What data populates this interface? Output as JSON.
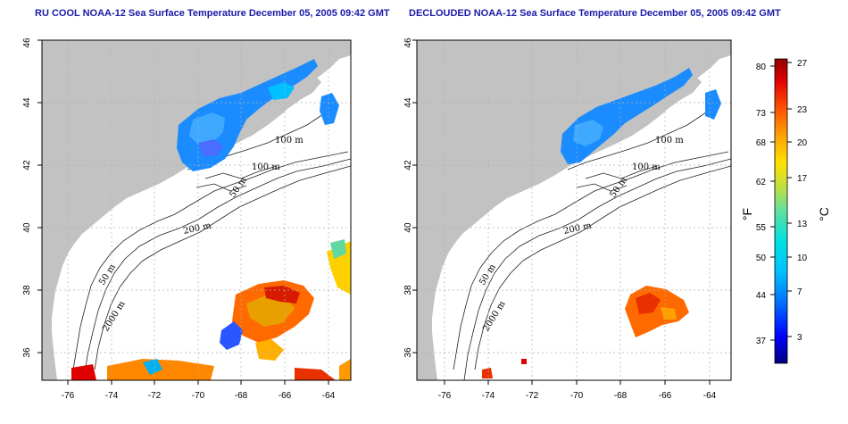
{
  "panels": [
    {
      "title": "RU COOL NOAA-12 Sea Surface Temperature December 05, 2005 09:42 GMT",
      "kind": "ru-cool"
    },
    {
      "title": "DECLOUDED NOAA-12 Sea Surface Temperature December 05, 2005 09:42 GMT",
      "kind": "declouded"
    }
  ],
  "map": {
    "lat_range": [
      35,
      46
    ],
    "lon_range": [
      -77,
      -63
    ],
    "lat_ticks": [
      "36",
      "38",
      "40",
      "42",
      "44",
      "46"
    ],
    "lon_ticks": [
      "-76",
      "-74",
      "-72",
      "-70",
      "-68",
      "-66",
      "-64"
    ],
    "contour_labels": [
      "100 m",
      "100 m",
      "50 m",
      "200 m",
      "50 m",
      "2000 m"
    ],
    "land_color": "#c2c2c2",
    "ocean_color": "#ffffff"
  },
  "colorbar": {
    "unit_left": "°F",
    "unit_right": "°C",
    "fahrenheit_ticks": [
      "80",
      "73",
      "68",
      "62",
      "55",
      "50",
      "44",
      "37"
    ],
    "celsius_ticks": [
      "27",
      "23",
      "20",
      "17",
      "13",
      "10",
      "7",
      "3"
    ],
    "celsius_min": 0,
    "celsius_max": 27.5,
    "colors": [
      "#000080",
      "#0000ff",
      "#0070ff",
      "#00c0ff",
      "#00e0e0",
      "#60e0a0",
      "#c0e040",
      "#ffe000",
      "#ffa000",
      "#ff5000",
      "#e00000",
      "#900000"
    ]
  }
}
